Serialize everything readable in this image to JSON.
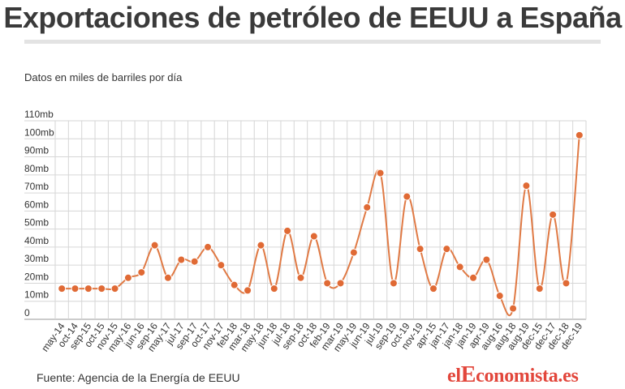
{
  "header": {
    "title": "Exportaciones de petróleo de EEUU a España"
  },
  "chart_data": {
    "type": "line",
    "subtitle": "Datos en miles de barriles por día",
    "xlabel": "",
    "ylabel": "",
    "categories": [
      "may-14",
      "oct-14",
      "sep-15",
      "oct-15",
      "nov-15",
      "may-16",
      "jun-16",
      "sep-16",
      "may-17",
      "jul-17",
      "sep-17",
      "oct-17",
      "nov-17",
      "feb-18",
      "mar-18",
      "may-18",
      "jun-18",
      "jul-18",
      "sep-18",
      "oct-18",
      "feb-19",
      "mar-19",
      "may-19",
      "jun-19",
      "jul-19",
      "sep-19",
      "oct-19",
      "nov-19",
      "apr-15",
      "jan-17",
      "jan-18",
      "jan-19",
      "apr-19",
      "aug-16",
      "aug-18",
      "aug-19",
      "dec-15",
      "dec-17",
      "dec-18",
      "dec-19"
    ],
    "series": [
      {
        "values": [
          17,
          17,
          17,
          17,
          17,
          23,
          26,
          41,
          23,
          33,
          32,
          40,
          30,
          19,
          16,
          41,
          17,
          49,
          23,
          46,
          20,
          20,
          37,
          62,
          81,
          20,
          68,
          39,
          17,
          39,
          29,
          23,
          33,
          13,
          6,
          74,
          17,
          58,
          20,
          102
        ]
      }
    ],
    "ylim": [
      0,
      110
    ],
    "yticks": [
      0,
      10,
      20,
      30,
      40,
      50,
      60,
      70,
      80,
      90,
      100,
      110
    ],
    "ytick_labels": [
      "0",
      "10mb",
      "20mb",
      "30mb",
      "40mb",
      "50mb",
      "60mb",
      "70mb",
      "80mb",
      "90mb",
      "100mb",
      "110mb"
    ],
    "grid": true,
    "legend": "none",
    "line_color": "#e07a45",
    "marker_color": "#e06a35"
  },
  "footer": {
    "source": "Fuente: Agencia de la Energía de EEUU",
    "logo_text_a": "el",
    "logo_text_b": "E",
    "logo_text_c": "conomista.es",
    "logo_color": "#e2463b"
  }
}
